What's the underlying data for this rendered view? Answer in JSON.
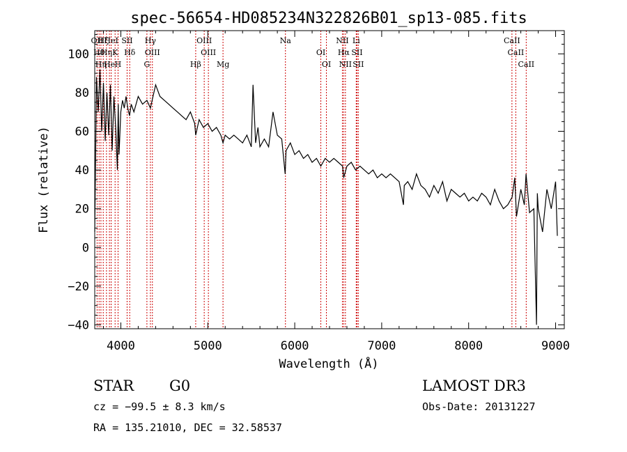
{
  "chart_data": {
    "type": "line",
    "title": "spec-56654-HD085234N322826B01_sp13-085.fits",
    "xlabel": "Wavelength (Å)",
    "ylabel": "Flux (relative)",
    "xlim": [
      3700,
      9100
    ],
    "ylim": [
      -42,
      112
    ],
    "x_ticks": [
      4000,
      5000,
      6000,
      7000,
      8000,
      9000
    ],
    "y_ticks": [
      -40,
      -20,
      0,
      20,
      40,
      60,
      80,
      100
    ],
    "grid": false,
    "series": [
      {
        "x": [
          3700,
          3720,
          3740,
          3760,
          3780,
          3800,
          3820,
          3840,
          3860,
          3880,
          3900,
          3920,
          3940,
          3960,
          3970,
          3980,
          4000,
          4020,
          4040,
          4060,
          4080,
          4100,
          4120,
          4150,
          4200,
          4250,
          4300,
          4340,
          4380,
          4400,
          4450,
          4500,
          4550,
          4600,
          4650,
          4700,
          4750,
          4800,
          4850,
          4861,
          4900,
          4950,
          5000,
          5050,
          5100,
          5150,
          5175,
          5200,
          5250,
          5300,
          5350,
          5400,
          5450,
          5500,
          5520,
          5550,
          5577,
          5600,
          5650,
          5700,
          5750,
          5800,
          5850,
          5890,
          5895,
          5900,
          5950,
          6000,
          6050,
          6100,
          6150,
          6200,
          6250,
          6300,
          6350,
          6400,
          6450,
          6500,
          6550,
          6563,
          6600,
          6650,
          6700,
          6750,
          6800,
          6850,
          6900,
          6950,
          7000,
          7050,
          7100,
          7150,
          7200,
          7250,
          7260,
          7300,
          7350,
          7400,
          7450,
          7500,
          7550,
          7600,
          7650,
          7700,
          7750,
          7800,
          7850,
          7900,
          7950,
          8000,
          8050,
          8100,
          8150,
          8200,
          8250,
          8300,
          8350,
          8400,
          8450,
          8500,
          8530,
          8550,
          8600,
          8640,
          8660,
          8700,
          8750,
          8780,
          8790,
          8800,
          8850,
          8900,
          8950,
          9000,
          9020
        ],
        "y": [
          8,
          88,
          70,
          92,
          60,
          85,
          55,
          80,
          58,
          84,
          50,
          78,
          62,
          40,
          74,
          48,
          70,
          76,
          72,
          78,
          72,
          68,
          74,
          70,
          78,
          74,
          76,
          72,
          80,
          84,
          78,
          76,
          74,
          72,
          70,
          68,
          66,
          70,
          64,
          58,
          66,
          62,
          64,
          60,
          62,
          58,
          54,
          58,
          56,
          58,
          56,
          54,
          58,
          52,
          84,
          54,
          62,
          52,
          56,
          52,
          70,
          58,
          56,
          38,
          44,
          50,
          54,
          48,
          50,
          46,
          48,
          44,
          46,
          42,
          46,
          44,
          46,
          44,
          42,
          36,
          42,
          44,
          40,
          42,
          40,
          38,
          40,
          36,
          38,
          36,
          38,
          36,
          34,
          22,
          32,
          34,
          30,
          38,
          32,
          30,
          26,
          32,
          28,
          34,
          24,
          30,
          28,
          26,
          28,
          24,
          26,
          24,
          28,
          26,
          22,
          30,
          24,
          20,
          22,
          26,
          36,
          16,
          30,
          22,
          38,
          18,
          20,
          -40,
          28,
          20,
          8,
          30,
          20,
          34,
          6
        ]
      }
    ],
    "line_markers": [
      {
        "x": 3727,
        "label": "OII"
      },
      {
        "x": 3750,
        "label": "Hθ"
      },
      {
        "x": 3771,
        "label": "Hη"
      },
      {
        "x": 3798,
        "label": "Hζ"
      },
      {
        "x": 3835,
        "label": "Hη"
      },
      {
        "x": 3869,
        "label": "He"
      },
      {
        "x": 3889,
        "label": "HeI"
      },
      {
        "x": 3934,
        "label": "K"
      },
      {
        "x": 3968,
        "label": "H"
      },
      {
        "x": 4072,
        "label": "SII"
      },
      {
        "x": 4102,
        "label": "Hδ"
      },
      {
        "x": 4300,
        "label": "G"
      },
      {
        "x": 4340,
        "label": "Hγ"
      },
      {
        "x": 4363,
        "label": "OIII"
      },
      {
        "x": 4861,
        "label": "Hβ"
      },
      {
        "x": 4959,
        "label": "OIII"
      },
      {
        "x": 5007,
        "label": "OIII"
      },
      {
        "x": 5175,
        "label": "Mg"
      },
      {
        "x": 5893,
        "label": "Na"
      },
      {
        "x": 6300,
        "label": "OI"
      },
      {
        "x": 6364,
        "label": "OI"
      },
      {
        "x": 6548,
        "label": "NII"
      },
      {
        "x": 6563,
        "label": "Hα"
      },
      {
        "x": 6583,
        "label": "NII"
      },
      {
        "x": 6707,
        "label": "Li"
      },
      {
        "x": 6716,
        "label": "SII"
      },
      {
        "x": 6731,
        "label": "SII"
      },
      {
        "x": 8498,
        "label": "CaII"
      },
      {
        "x": 8542,
        "label": "CaII"
      },
      {
        "x": 8662,
        "label": "CaII"
      }
    ],
    "marker_color": "#cc0000"
  },
  "info": {
    "class": "STAR",
    "subclass": "G0",
    "survey": "LAMOST DR3",
    "cz": "cz = −99.5 ± 8.3 km/s",
    "obs_date": "Obs-Date: 20131227",
    "radec": "RA = 135.21010, DEC =  32.58537"
  }
}
